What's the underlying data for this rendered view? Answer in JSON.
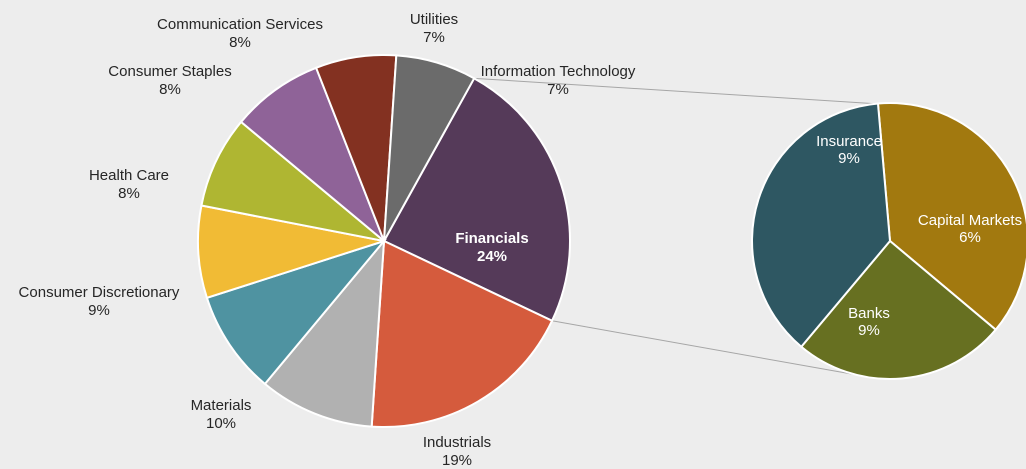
{
  "chart_data": {
    "type": "pie",
    "main_pie": {
      "slices": [
        {
          "name": "Financials",
          "value": 24,
          "label": "24%",
          "color": "#553a59"
        },
        {
          "name": "Industrials",
          "value": 19,
          "label": "19%",
          "color": "#d55b3d"
        },
        {
          "name": "Materials",
          "value": 10,
          "label": "10%",
          "color": "#b1b1b1"
        },
        {
          "name": "Consumer Discretionary",
          "value": 9,
          "label": "9%",
          "color": "#4f93a1"
        },
        {
          "name": "Health Care",
          "value": 8,
          "label": "8%",
          "color": "#f1bb35"
        },
        {
          "name": "Consumer Staples",
          "value": 8,
          "label": "8%",
          "color": "#afb632"
        },
        {
          "name": "Communication Services",
          "value": 8,
          "label": "8%",
          "color": "#8f6398"
        },
        {
          "name": "Utilities",
          "value": 7,
          "label": "7%",
          "color": "#833121"
        },
        {
          "name": "Information Technology",
          "value": 7,
          "label": "7%",
          "color": "#6b6b6b"
        }
      ]
    },
    "breakout_pie": {
      "parent": "Financials",
      "slices": [
        {
          "name": "Insurance",
          "value": 9,
          "label": "9%",
          "color": "#a2790f"
        },
        {
          "name": "Capital Markets",
          "value": 6,
          "label": "6%",
          "color": "#677021"
        },
        {
          "name": "Banks",
          "value": 9,
          "label": "9%",
          "color": "#2e5762"
        }
      ]
    }
  }
}
